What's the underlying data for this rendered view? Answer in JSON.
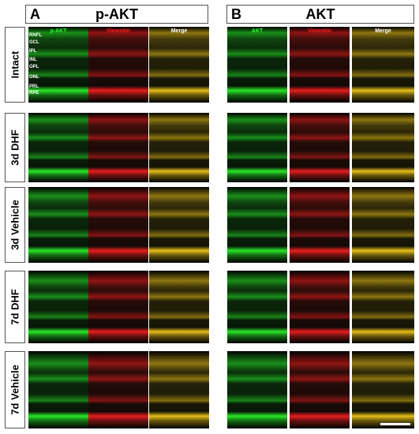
{
  "groups": [
    {
      "letter": "A",
      "title": "p-AKT",
      "columns": [
        "p-AKT",
        "Vimentin",
        "Merge"
      ]
    },
    {
      "letter": "B",
      "title": "AKT",
      "columns": [
        "AKT",
        "Vimentin",
        "Merge"
      ]
    }
  ],
  "rows": [
    "Intact",
    "3d DHF",
    "3d Vehicle",
    "7d DHF",
    "7d Vehicle"
  ],
  "layer_labels": [
    "RNFL",
    "GCL",
    "IPL",
    "INL",
    "OPL",
    "ONL",
    "PRL",
    "RPE"
  ],
  "colors": {
    "green_channel": "#2bff2b",
    "red_channel": "#ff2020",
    "merge": "#ffd21a"
  }
}
